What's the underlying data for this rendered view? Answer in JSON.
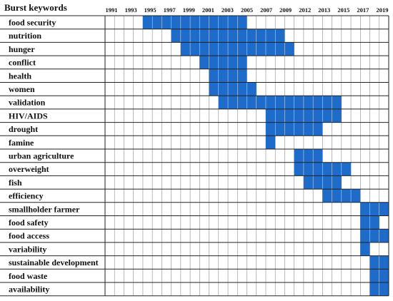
{
  "chart_data": {
    "type": "table",
    "title": "Burst keywords",
    "columns": 30,
    "year_labels": [
      "1991",
      "1993",
      "1995",
      "1997",
      "1999",
      "2001",
      "2003",
      "2005",
      "2007",
      "2009",
      "2012",
      "2013",
      "2015",
      "2017",
      "2019"
    ],
    "keywords": [
      "food security",
      "nutrition",
      "hunger",
      "conflict",
      "health",
      "women",
      "validation",
      "HIV/AIDS",
      "drought",
      "famine",
      "urban agriculture",
      "overweight",
      "fish",
      "efficiency",
      "smallholder farmer",
      "food safety",
      "food access",
      "variability",
      "sustainable development",
      "food waste",
      "availability"
    ],
    "bursts": [
      {
        "keyword": "food security",
        "start_col": 4,
        "end_col": 14
      },
      {
        "keyword": "nutrition",
        "start_col": 7,
        "end_col": 18
      },
      {
        "keyword": "hunger",
        "start_col": 8,
        "end_col": 19
      },
      {
        "keyword": "conflict",
        "start_col": 10,
        "end_col": 14
      },
      {
        "keyword": "health",
        "start_col": 11,
        "end_col": 14
      },
      {
        "keyword": "women",
        "start_col": 11,
        "end_col": 15
      },
      {
        "keyword": "validation",
        "start_col": 12,
        "end_col": 24
      },
      {
        "keyword": "HIV/AIDS",
        "start_col": 17,
        "end_col": 24
      },
      {
        "keyword": "drought",
        "start_col": 17,
        "end_col": 22
      },
      {
        "keyword": "famine",
        "start_col": 17,
        "end_col": 17
      },
      {
        "keyword": "urban agriculture",
        "start_col": 20,
        "end_col": 22
      },
      {
        "keyword": "overweight",
        "start_col": 20,
        "end_col": 25
      },
      {
        "keyword": "fish",
        "start_col": 21,
        "end_col": 24
      },
      {
        "keyword": "efficiency",
        "start_col": 23,
        "end_col": 26
      },
      {
        "keyword": "smallholder farmer",
        "start_col": 27,
        "end_col": 29
      },
      {
        "keyword": "food safety",
        "start_col": 27,
        "end_col": 28
      },
      {
        "keyword": "food access",
        "start_col": 27,
        "end_col": 29
      },
      {
        "keyword": "variability",
        "start_col": 27,
        "end_col": 27
      },
      {
        "keyword": "sustainable development",
        "start_col": 28,
        "end_col": 29
      },
      {
        "keyword": "food waste",
        "start_col": 28,
        "end_col": 29
      },
      {
        "keyword": "availability",
        "start_col": 28,
        "end_col": 29
      }
    ],
    "colors": {
      "burst": "#1f6bc9",
      "grid": "#8c8c8c",
      "border": "#222222",
      "background": "#ffffff"
    }
  }
}
